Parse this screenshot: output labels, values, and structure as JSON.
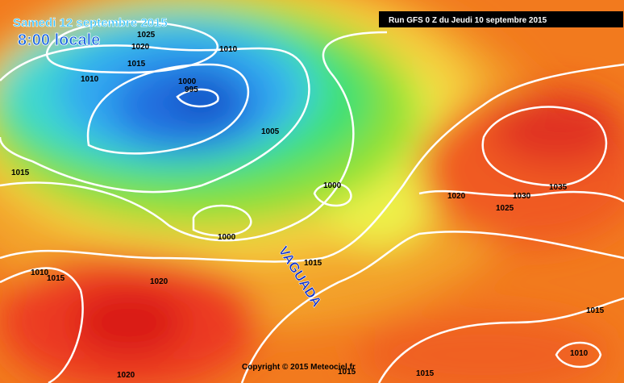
{
  "header": {
    "date": "Samedi 12 septembre 2015",
    "time": "8:00 locale",
    "run": "Run GFS 0 Z du Jeudi 10 septembre 2015"
  },
  "annotation": "VAGUADA",
  "copyright": "Copyright © 2015 Meteociel.fr",
  "isobar_labels": [
    1025,
    1020,
    1015,
    1010,
    1010,
    1000,
    995,
    1005,
    1015,
    1000,
    1000,
    1015,
    1020,
    1020,
    1030,
    1035,
    1025,
    1010,
    1015,
    1015,
    1010,
    1020,
    1015,
    1015
  ]
}
